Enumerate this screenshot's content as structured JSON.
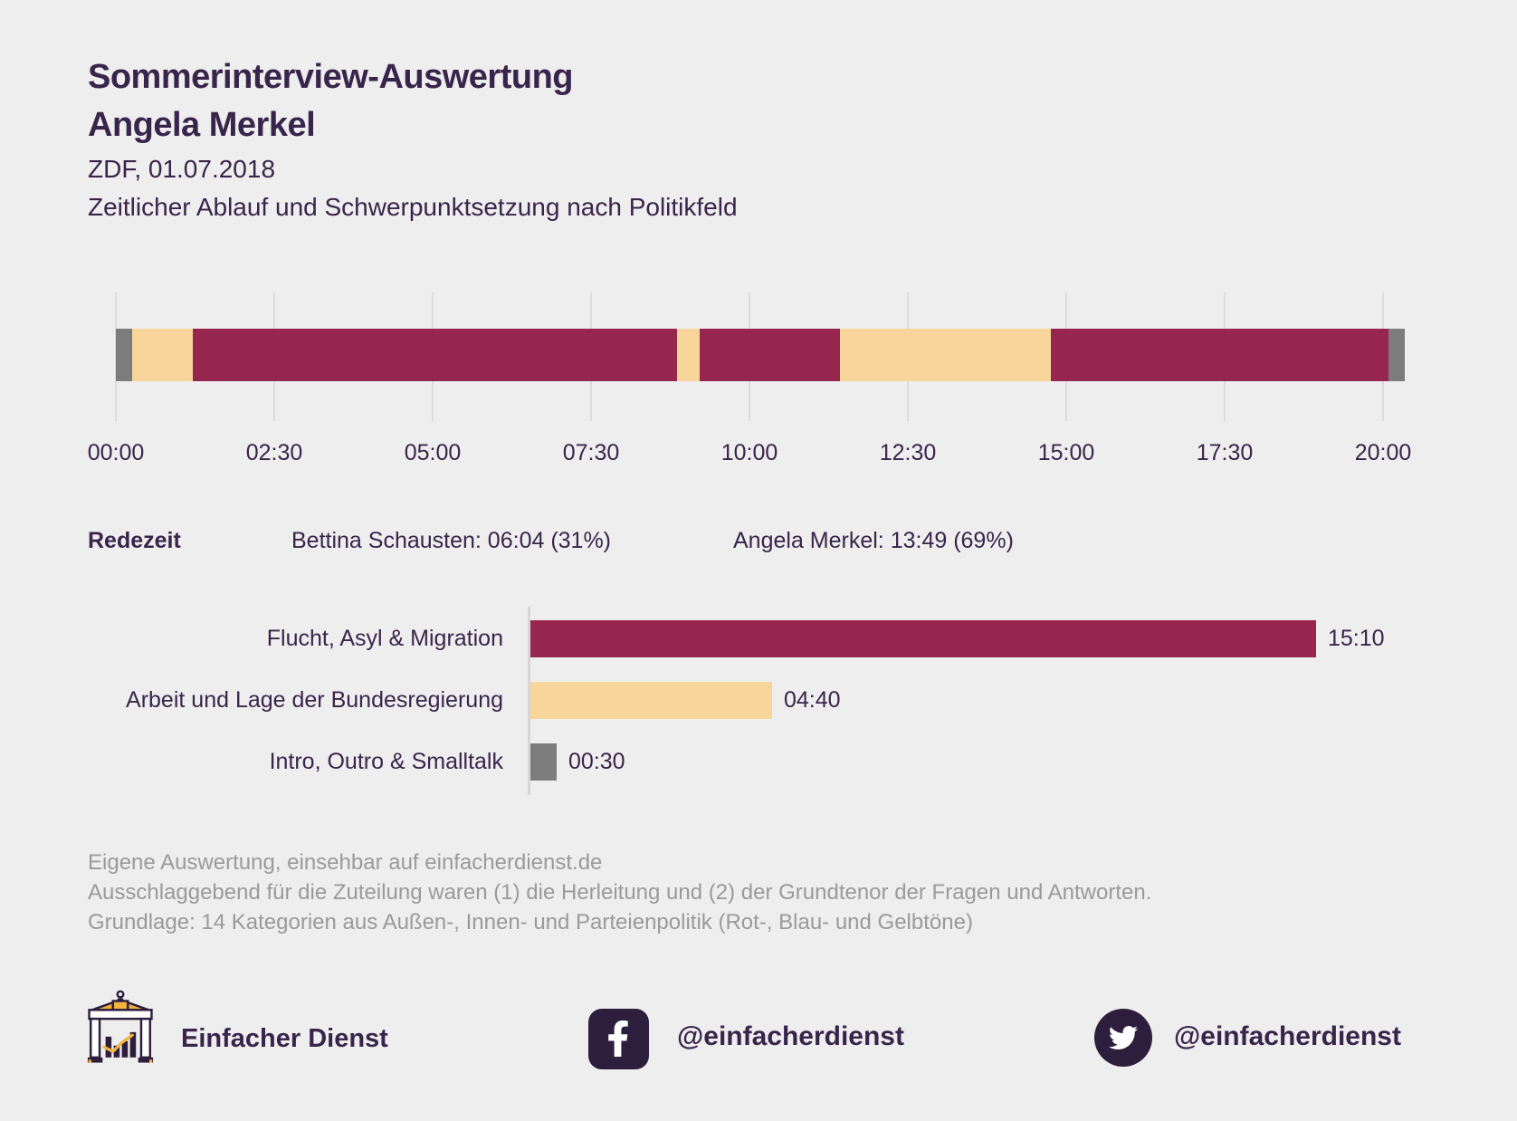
{
  "colors": {
    "background": "#efeeee",
    "maroon": "#97264e",
    "cream": "#f8d59b",
    "gray": "#7c7c7c",
    "text_dark": "#38254b",
    "text_gray": "#9a9a9a",
    "gridline": "#dcdcdc"
  },
  "header": {
    "title_line1": "Sommerinterview-Auswertung",
    "title_line2": "Angela Merkel",
    "subtitle_source": "ZDF, 01.07.2018",
    "subtitle_description": "Zeitlicher Ablauf und Schwerpunktsetzung nach Politikfeld"
  },
  "redezeit": {
    "label": "Redezeit",
    "speakers": [
      "Bettina Schausten: 06:04 (31%)",
      "Angela Merkel: 13:49 (69%)"
    ]
  },
  "footer": {
    "lines": [
      "Eigene Auswertung, einsehbar auf einfacherdienst.de",
      "Ausschlaggebend für die Zuteilung waren (1) die Herleitung und (2) der Grundtenor der Fragen und Antworten.",
      "Grundlage: 14 Kategorien aus Außen-, Innen- und Parteienpolitik (Rot-, Blau- und Gelbtöne)"
    ]
  },
  "brand": {
    "name": "Einfacher Dienst",
    "facebook_handle": "@einfacherdienst",
    "twitter_handle": "@einfacherdienst",
    "icons": [
      "brandenburg-gate-icon",
      "facebook-icon",
      "twitter-icon"
    ]
  },
  "chart_data": [
    {
      "type": "timeline-stacked-bar",
      "title": "Zeitlicher Ablauf und Schwerpunktsetzung nach Politikfeld",
      "x_axis": {
        "ticks": [
          "00:00",
          "02:30",
          "05:00",
          "07:30",
          "10:00",
          "12:30",
          "15:00",
          "17:30",
          "20:00"
        ],
        "tick_interval": "02:30",
        "range": [
          "00:00",
          "20:20"
        ]
      },
      "total_seconds": 1220,
      "grid": true,
      "segments": [
        {
          "category": "Intro, Outro & Smalltalk",
          "color": "gray",
          "start": "00:00",
          "end": "00:15",
          "seconds": 15
        },
        {
          "category": "Arbeit und Lage der Bundesregierung",
          "color": "cream",
          "start": "00:15",
          "end": "01:13",
          "seconds": 58
        },
        {
          "category": "Flucht, Asyl & Migration",
          "color": "maroon",
          "start": "01:13",
          "end": "08:51",
          "seconds": 458
        },
        {
          "category": "Arbeit und Lage der Bundesregierung",
          "color": "cream",
          "start": "08:51",
          "end": "09:13",
          "seconds": 22
        },
        {
          "category": "Flucht, Asyl & Migration",
          "color": "maroon",
          "start": "09:13",
          "end": "11:25",
          "seconds": 132
        },
        {
          "category": "Arbeit und Lage der Bundesregierung",
          "color": "cream",
          "start": "11:25",
          "end": "14:45",
          "seconds": 200
        },
        {
          "category": "Flucht, Asyl & Migration",
          "color": "maroon",
          "start": "14:45",
          "end": "20:05",
          "seconds": 320
        },
        {
          "category": "Intro, Outro & Smalltalk",
          "color": "gray",
          "start": "20:05",
          "end": "20:20",
          "seconds": 15
        }
      ]
    },
    {
      "type": "bar",
      "orientation": "horizontal",
      "categories": [
        "Flucht, Asyl & Migration",
        "Arbeit und Lage der Bundesregierung",
        "Intro, Outro & Smalltalk"
      ],
      "values": [
        "15:10",
        "04:40",
        "00:30"
      ],
      "seconds": [
        910,
        280,
        30
      ],
      "colors": [
        "maroon",
        "cream",
        "gray"
      ],
      "legend": false,
      "grid": false
    }
  ]
}
